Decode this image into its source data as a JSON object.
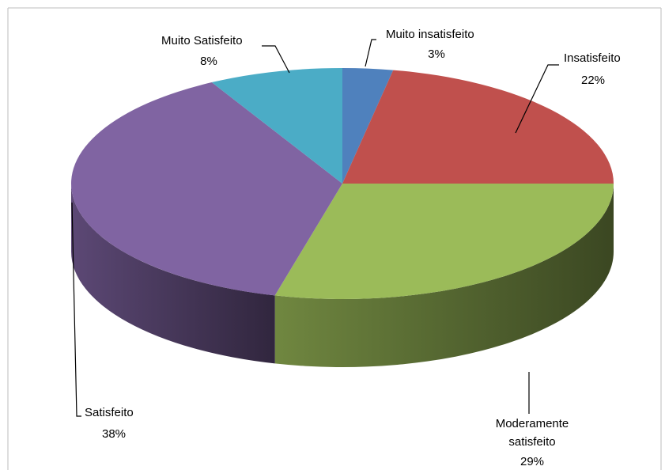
{
  "chart_data": {
    "type": "pie",
    "title": "",
    "style": "3d-exploded-free",
    "slices": [
      {
        "name": "Muito insatisfeito",
        "percent": 3,
        "label": "3%",
        "color": "#4f81bd"
      },
      {
        "name": "Insatisfeito",
        "percent": 22,
        "label": "22%",
        "color": "#c0504d"
      },
      {
        "name": "Moderamente satisfeito",
        "name_lines": [
          "Moderamente",
          "satisfeito"
        ],
        "percent": 29,
        "label": "29%",
        "color": "#9bbb59"
      },
      {
        "name": "Satisfeito",
        "percent": 38,
        "label": "38%",
        "color": "#8064a2"
      },
      {
        "name": "Muito Satisfeito",
        "percent": 8,
        "label": "8%",
        "color": "#4bacc6"
      }
    ],
    "legend": "none",
    "data_labels": "outside-with-leader-lines"
  }
}
